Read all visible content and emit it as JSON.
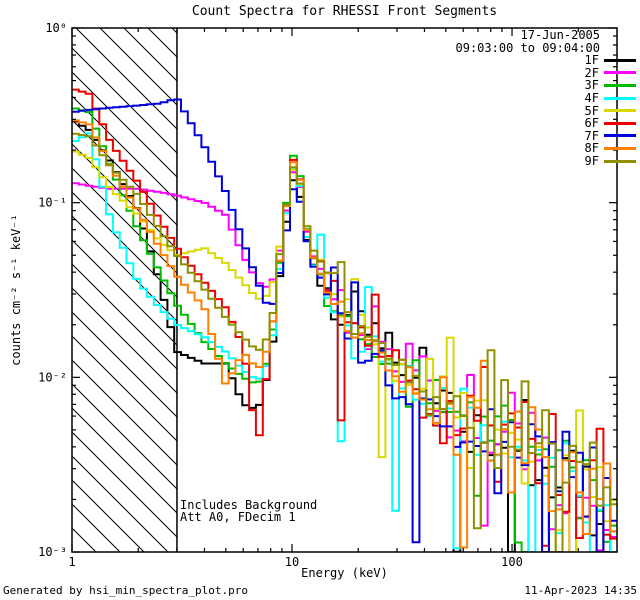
{
  "header": {
    "title": "Count Spectra for RHESSI Front Segments"
  },
  "annotations": {
    "date_line1": "17-Jun-2005",
    "date_line2": "09:03:00 to 09:04:00",
    "note_line1": "Includes Background",
    "note_line2": "Att A0, FDecim 1"
  },
  "footer": {
    "left": "Generated by hsi_min_spectra_plot.pro",
    "right": "11-Apr-2023 14:35"
  },
  "chart_data": {
    "type": "line",
    "mode": "step-histogram",
    "title": "Count Spectra for RHESSI Front Segments",
    "xlabel": "Energy (keV)",
    "ylabel": "counts cm⁻² s⁻¹ keV⁻¹",
    "x_scale": "log",
    "y_scale": "log",
    "xlim": [
      1,
      300
    ],
    "ylim": [
      0.001,
      1
    ],
    "x_major_ticks": [
      {
        "value": 1,
        "label": "1"
      },
      {
        "value": 10,
        "label": "10"
      },
      {
        "value": 100,
        "label": "100"
      }
    ],
    "y_major_ticks": [
      {
        "value": 1,
        "label": "10⁰"
      },
      {
        "value": 0.1,
        "label": "10⁻¹"
      },
      {
        "value": 0.01,
        "label": "10⁻²"
      },
      {
        "value": 0.001,
        "label": "10⁻³"
      }
    ],
    "hatched_region": {
      "x_from": 1,
      "x_to": 3,
      "style": "diagonal-hatch"
    },
    "legend_position": "top-right-outside",
    "energies_kev": [
      1.0,
      1.2,
      1.5,
      2.0,
      2.5,
      3.0,
      4.0,
      5.0,
      6.0,
      7.0,
      8.0,
      9.0,
      10.0,
      10.5,
      11.0,
      12.0,
      14.0,
      17.0,
      20.0,
      25.0,
      30.0,
      40.0,
      50.0,
      70.0,
      100.0,
      150.0,
      200.0,
      300.0
    ],
    "series": [
      {
        "name": "1F",
        "color": "#000000",
        "noise_seed": 11,
        "values": [
          0.3,
          0.26,
          0.17,
          0.09,
          0.035,
          0.014,
          0.012,
          0.012,
          0.007,
          0.0065,
          0.012,
          0.05,
          0.13,
          0.145,
          0.1,
          0.05,
          0.033,
          0.022,
          0.03,
          0.016,
          0.012,
          0.0085,
          0.0065,
          0.0055,
          0.0042,
          0.0032,
          0.0024,
          0.0013
        ]
      },
      {
        "name": "2F",
        "color": "#ff00ff",
        "noise_seed": 22,
        "values": [
          0.13,
          0.125,
          0.12,
          0.12,
          0.115,
          0.11,
          0.1,
          0.085,
          0.05,
          0.035,
          0.032,
          0.06,
          0.145,
          0.16,
          0.115,
          0.055,
          0.038,
          0.024,
          0.019,
          0.015,
          0.012,
          0.0085,
          0.0068,
          0.0055,
          0.0042,
          0.0032,
          0.0024,
          0.0013
        ]
      },
      {
        "name": "3F",
        "color": "#00bb00",
        "noise_seed": 33,
        "values": [
          0.35,
          0.33,
          0.16,
          0.07,
          0.04,
          0.026,
          0.016,
          0.012,
          0.01,
          0.009,
          0.014,
          0.06,
          0.18,
          0.2,
          0.13,
          0.055,
          0.035,
          0.022,
          0.018,
          0.014,
          0.011,
          0.008,
          0.0065,
          0.0055,
          0.0045,
          0.0033,
          0.0025,
          0.0014
        ]
      },
      {
        "name": "4F",
        "color": "#00ffff",
        "noise_seed": 44,
        "values": [
          0.22,
          0.25,
          0.08,
          0.035,
          0.025,
          0.02,
          0.017,
          0.014,
          0.011,
          0.0095,
          0.013,
          0.055,
          0.15,
          0.17,
          0.115,
          0.05,
          0.032,
          0.021,
          0.017,
          0.013,
          0.01,
          0.0075,
          0.006,
          0.005,
          0.004,
          0.0031,
          0.0023,
          0.0012
        ]
      },
      {
        "name": "5F",
        "color": "#d9d900",
        "noise_seed": 55,
        "values": [
          0.2,
          0.18,
          0.12,
          0.085,
          0.06,
          0.05,
          0.055,
          0.045,
          0.035,
          0.028,
          0.03,
          0.065,
          0.15,
          0.165,
          0.12,
          0.06,
          0.04,
          0.026,
          0.02,
          0.016,
          0.012,
          0.009,
          0.007,
          0.0058,
          0.0045,
          0.0034,
          0.0026,
          0.0014
        ]
      },
      {
        "name": "6F",
        "color": "#ee0000",
        "noise_seed": 66,
        "values": [
          0.45,
          0.42,
          0.22,
          0.13,
          0.08,
          0.055,
          0.035,
          0.025,
          0.015,
          0.004,
          0.016,
          0.06,
          0.17,
          0.19,
          0.125,
          0.055,
          0.036,
          0.023,
          0.018,
          0.014,
          0.011,
          0.008,
          0.0065,
          0.0056,
          0.0044,
          0.0033,
          0.0025,
          0.0013
        ]
      },
      {
        "name": "7F",
        "color": "#0000dd",
        "noise_seed": 77,
        "values": [
          0.33,
          0.34,
          0.35,
          0.36,
          0.37,
          0.395,
          0.21,
          0.115,
          0.06,
          0.035,
          0.023,
          0.045,
          0.115,
          0.13,
          0.095,
          0.05,
          0.03,
          0.019,
          0.015,
          0.012,
          0.0095,
          0.007,
          0.0058,
          0.005,
          0.004,
          0.0031,
          0.0023,
          0.0012
        ]
      },
      {
        "name": "8F",
        "color": "#ff8000",
        "noise_seed": 88,
        "values": [
          0.3,
          0.28,
          0.16,
          0.09,
          0.055,
          0.038,
          0.025,
          0.009,
          0.014,
          0.011,
          0.016,
          0.06,
          0.165,
          0.185,
          0.125,
          0.055,
          0.036,
          0.023,
          0.018,
          0.014,
          0.011,
          0.008,
          0.0066,
          0.0056,
          0.0044,
          0.0033,
          0.0025,
          0.0013
        ]
      },
      {
        "name": "9F",
        "color": "#8f8f00",
        "noise_seed": 99,
        "values": [
          0.25,
          0.24,
          0.16,
          0.11,
          0.07,
          0.05,
          0.032,
          0.022,
          0.017,
          0.014,
          0.018,
          0.065,
          0.155,
          0.17,
          0.12,
          0.06,
          0.04,
          0.026,
          0.021,
          0.016,
          0.013,
          0.0095,
          0.0075,
          0.006,
          0.0047,
          0.0035,
          0.0027,
          0.0015
        ]
      }
    ],
    "render_hints": {
      "bins": 80,
      "noise_start_kev": 13,
      "noise_sigma_min": 0.07,
      "noise_sigma_max": 0.5,
      "spike_down_prob": 0.05,
      "spike_down_factor": 0.2,
      "spike_up_prob": 0.035,
      "spike_up_factor": 1.8,
      "line_width": 2
    }
  }
}
